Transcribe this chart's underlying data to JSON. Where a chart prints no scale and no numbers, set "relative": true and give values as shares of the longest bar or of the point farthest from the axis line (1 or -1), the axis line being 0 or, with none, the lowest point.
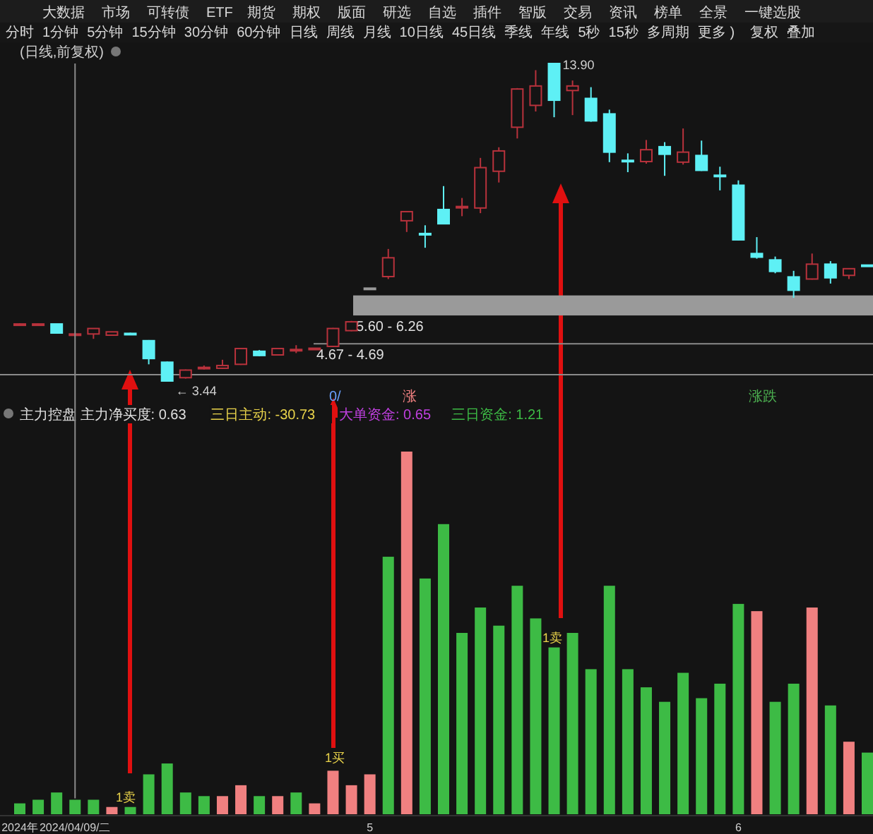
{
  "chart_data": [
    {
      "type": "other",
      "annotations": [
        "大数据",
        "市场",
        "可转债",
        "ETF",
        "期货",
        "期权",
        "版面",
        "研选",
        "自选",
        "插件",
        "智版",
        "交易",
        "资讯",
        "榜单",
        "全景",
        "一键选股"
      ]
    },
    {
      "type": "other",
      "annotations": [
        "分时",
        "1分钟",
        "5分钟",
        "15分钟",
        "30分钟",
        "60分钟",
        "日线",
        "周线",
        "月线",
        "10日线",
        "45日线",
        "季线",
        "年线",
        "5秒",
        "15秒",
        "多周期",
        "更多 )",
        "复权",
        "叠加"
      ]
    },
    {
      "type": "candlestick",
      "title": "(日线,前复权)",
      "categories": [
        null,
        null,
        null,
        null,
        null,
        null,
        null,
        null,
        null,
        null,
        null,
        null,
        null,
        null,
        null,
        null,
        null,
        null,
        null,
        null,
        null,
        null,
        null,
        null,
        null,
        null,
        null,
        null,
        null,
        null,
        null,
        null,
        null,
        null,
        null,
        null,
        null,
        null,
        null,
        null,
        null,
        null,
        null,
        null,
        null,
        null,
        null
      ],
      "ohlc": [
        [
          5.3,
          5.34,
          5.29,
          5.32
        ],
        [
          5.3,
          5.33,
          5.29,
          5.32
        ],
        [
          5.32,
          5.32,
          5.02,
          5.02
        ],
        [
          4.98,
          5.01,
          4.97,
          4.99
        ],
        [
          4.99,
          5.17,
          4.83,
          5.17
        ],
        [
          4.95,
          5.07,
          4.94,
          5.06
        ],
        [
          5.01,
          5.03,
          4.96,
          4.99
        ],
        [
          4.77,
          4.79,
          3.99,
          4.18
        ],
        [
          4.06,
          4.08,
          3.44,
          3.44
        ],
        [
          3.55,
          3.82,
          3.52,
          3.8
        ],
        [
          3.87,
          3.95,
          3.82,
          3.89
        ],
        [
          3.86,
          4.14,
          3.84,
          3.95
        ],
        [
          3.99,
          4.53,
          3.97,
          4.51
        ],
        [
          4.42,
          4.46,
          4.26,
          4.28
        ],
        [
          4.3,
          4.52,
          4.29,
          4.51
        ],
        [
          4.47,
          4.62,
          4.36,
          4.48
        ],
        [
          4.5,
          4.53,
          4.49,
          4.52
        ],
        [
          4.58,
          5.19,
          4.56,
          5.17
        ],
        [
          5.1,
          5.42,
          5.08,
          5.39
        ],
        [
          6.5,
          6.5,
          6.5,
          6.5
        ],
        [
          6.88,
          7.79,
          6.8,
          7.5
        ],
        [
          8.72,
          9.03,
          8.35,
          9.02
        ],
        [
          8.3,
          8.57,
          7.83,
          8.26
        ],
        [
          9.09,
          9.86,
          8.6,
          8.62
        ],
        [
          9.15,
          9.47,
          8.87,
          9.19
        ],
        [
          9.14,
          10.79,
          8.97,
          10.47
        ],
        [
          10.35,
          11.14,
          9.98,
          11.02
        ],
        [
          11.8,
          13.09,
          11.43,
          13.06
        ],
        [
          12.52,
          13.68,
          12.32,
          13.16
        ],
        [
          13.9,
          13.9,
          12.13,
          12.69
        ],
        [
          13.01,
          13.34,
          12.2,
          13.16
        ],
        [
          12.75,
          13.12,
          11.98,
          12.01
        ],
        [
          12.24,
          12.38,
          10.65,
          10.98
        ],
        [
          10.71,
          10.94,
          10.32,
          10.67
        ],
        [
          10.67,
          11.38,
          10.6,
          11.06
        ],
        [
          11.16,
          11.31,
          10.2,
          10.91
        ],
        [
          10.65,
          11.76,
          10.57,
          10.98
        ],
        [
          10.87,
          11.36,
          10.36,
          10.38
        ],
        [
          10.22,
          10.5,
          9.72,
          10.18
        ],
        [
          9.89,
          10.05,
          8.07,
          8.09
        ],
        [
          7.64,
          8.18,
          7.47,
          7.52
        ],
        [
          7.43,
          7.54,
          6.99,
          7.05
        ],
        [
          6.87,
          7.07,
          6.18,
          6.43
        ],
        [
          6.8,
          7.64,
          6.78,
          7.29
        ],
        [
          7.29,
          7.39,
          6.65,
          6.84
        ],
        [
          6.92,
          7.16,
          6.8,
          7.14
        ],
        [
          7.26,
          7.27,
          7.22,
          7.22
        ]
      ],
      "colors": [
        "#b8323c",
        "#b8323c",
        "#5ef0f5",
        "#b8323c",
        "#b8323c",
        "#b8323c",
        "#5ef0f5",
        "#5ef0f5",
        "#5ef0f5",
        "#b8323c",
        "#b8323c",
        "#b8323c",
        "#b8323c",
        "#5ef0f5",
        "#b8323c",
        "#b8323c",
        "#b8323c",
        "#b8323c",
        "#b8323c",
        "#9a9a9a",
        "#b8323c",
        "#b8323c",
        "#5ef0f5",
        "#5ef0f5",
        "#b8323c",
        "#b8323c",
        "#b8323c",
        "#b8323c",
        "#b8323c",
        "#5ef0f5",
        "#b8323c",
        "#5ef0f5",
        "#5ef0f5",
        "#5ef0f5",
        "#b8323c",
        "#5ef0f5",
        "#b8323c",
        "#5ef0f5",
        "#5ef0f5",
        "#5ef0f5",
        "#5ef0f5",
        "#5ef0f5",
        "#5ef0f5",
        "#b8323c",
        "#5ef0f5",
        "#b8323c",
        "#5ef0f5"
      ],
      "value_labels": [
        null,
        null,
        null,
        null,
        null,
        null,
        null,
        null,
        "← 3.44",
        null,
        null,
        null,
        null,
        null,
        null,
        null,
        null,
        null,
        null,
        null,
        null,
        null,
        null,
        null,
        null,
        null,
        null,
        null,
        null,
        "13.90",
        null,
        null,
        null,
        null,
        null,
        null,
        null,
        null,
        null,
        null,
        null,
        null,
        null,
        null,
        null,
        null,
        null
      ],
      "bands": [
        {
          "axis": "y",
          "from": 5.6,
          "to": 6.26,
          "label": "5.60 - 6.26",
          "color": "#9a9a9a"
        },
        {
          "axis": "y",
          "from": 4.67,
          "to": 4.69,
          "label": "4.67 - 4.69",
          "color": "#8a8a8a"
        }
      ],
      "ref_lines": [
        {
          "axis": "y",
          "value": 3.65,
          "color": "#8a8a8a"
        }
      ],
      "annotations": [
        "0/",
        "涨",
        "涨跌"
      ],
      "tick_labels": false
    },
    {
      "type": "bar",
      "relative": true,
      "categories": [
        "2024年",
        null,
        null,
        "2024/04/09/二",
        null,
        null,
        null,
        null,
        null,
        null,
        null,
        null,
        null,
        null,
        null,
        null,
        null,
        null,
        null,
        "5",
        null,
        null,
        null,
        null,
        null,
        null,
        null,
        null,
        null,
        null,
        null,
        null,
        null,
        null,
        null,
        null,
        null,
        null,
        null,
        "6",
        null,
        null,
        null,
        null,
        null,
        null,
        null
      ],
      "values": [
        0.03,
        0.04,
        0.06,
        0.04,
        0.04,
        0.02,
        0.02,
        0.11,
        0.14,
        0.06,
        0.05,
        0.05,
        0.08,
        0.05,
        0.05,
        0.06,
        0.03,
        0.12,
        0.08,
        0.11,
        0.71,
        1,
        0.65,
        0.8,
        0.5,
        0.57,
        0.52,
        0.63,
        0.54,
        0.46,
        0.5,
        0.4,
        0.63,
        0.4,
        0.35,
        0.31,
        0.39,
        0.32,
        0.36,
        0.58,
        0.56,
        0.31,
        0.36,
        0.57,
        0.3,
        0.2,
        0.17
      ],
      "colors": [
        "#3dbb45",
        "#3dbb45",
        "#3dbb45",
        "#3dbb45",
        "#3dbb45",
        "#f08080",
        "#3dbb45",
        "#3dbb45",
        "#3dbb45",
        "#3dbb45",
        "#3dbb45",
        "#f08080",
        "#f08080",
        "#3dbb45",
        "#f08080",
        "#3dbb45",
        "#f08080",
        "#f08080",
        "#f08080",
        "#f08080",
        "#3dbb45",
        "#f08080",
        "#3dbb45",
        "#3dbb45",
        "#3dbb45",
        "#3dbb45",
        "#3dbb45",
        "#3dbb45",
        "#3dbb45",
        "#3dbb45",
        "#3dbb45",
        "#3dbb45",
        "#3dbb45",
        "#3dbb45",
        "#3dbb45",
        "#3dbb45",
        "#3dbb45",
        "#3dbb45",
        "#3dbb45",
        "#3dbb45",
        "#f08080",
        "#3dbb45",
        "#3dbb45",
        "#f08080",
        "#3dbb45",
        "#f08080",
        "#3dbb45"
      ],
      "ref_lines": [
        {
          "axis": "x",
          "value": "2024/04/09/二",
          "color": "#8a8a8a"
        }
      ],
      "annotations": [
        "主力控盘 主力净买度: 0.63",
        "三日主动: -30.73",
        "大单资金: 0.65",
        "三日资金: 1.21",
        "1卖",
        "1买",
        "1卖"
      ],
      "tick_labels": "x"
    }
  ]
}
